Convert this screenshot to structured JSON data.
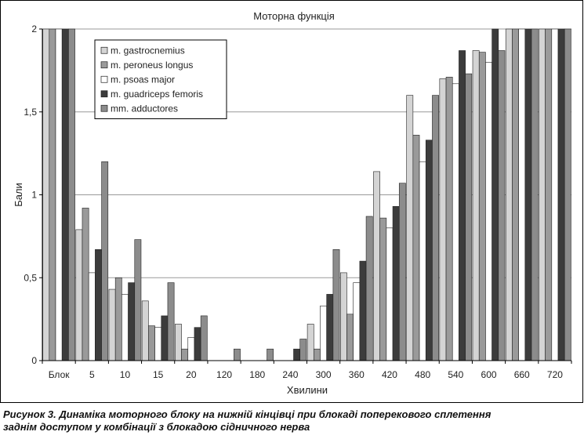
{
  "chart_data": {
    "type": "bar",
    "title": "Моторна функція",
    "xlabel": "Хвилини",
    "ylabel": "Бали",
    "ylim": [
      0,
      2
    ],
    "yticks": [
      "0",
      "0,5",
      "1",
      "1,5",
      "2"
    ],
    "categories": [
      "Блок",
      "5",
      "10",
      "15",
      "20",
      "120",
      "180",
      "240",
      "300",
      "360",
      "420",
      "480",
      "540",
      "600",
      "660",
      "720"
    ],
    "grid": true,
    "legend_position": "top-left",
    "series": [
      {
        "name": "m. gastrocnemius",
        "color": "#d4d4d4",
        "values": [
          2,
          0.79,
          0.43,
          0.36,
          0.22,
          0,
          0,
          0,
          0.22,
          0.53,
          1.14,
          1.6,
          1.7,
          1.87,
          2,
          2
        ]
      },
      {
        "name": "m. peroneus longus",
        "color": "#9a9a9a",
        "values": [
          2,
          0.92,
          0.5,
          0.21,
          0.07,
          0,
          0,
          0,
          0.07,
          0.28,
          0.86,
          1.36,
          1.71,
          1.86,
          2,
          2
        ]
      },
      {
        "name": "m. psoas major",
        "color": "#ffffff",
        "values": [
          2,
          0.53,
          0.4,
          0.2,
          0.14,
          0,
          0,
          0,
          0.33,
          0.47,
          0.8,
          1.2,
          1.67,
          1.8,
          2,
          2
        ]
      },
      {
        "name": "m. guadriceps femoris",
        "color": "#3c3c3c",
        "values": [
          2,
          0.67,
          0.47,
          0.27,
          0.2,
          0,
          0,
          0.07,
          0.4,
          0.6,
          0.93,
          1.33,
          1.87,
          2,
          2,
          2
        ]
      },
      {
        "name": "mm. adductores",
        "color": "#8c8c8c",
        "values": [
          2,
          1.2,
          0.73,
          0.47,
          0.27,
          0.07,
          0.07,
          0.13,
          0.67,
          0.87,
          1.07,
          1.6,
          1.73,
          1.87,
          2,
          2
        ]
      }
    ]
  },
  "caption": {
    "line1": "Рисунок 3. Динаміка моторного блоку на нижній кінцівці при блокаді поперекового сплетення",
    "line2": "заднім доступом у комбінації з блокадою сідничного нерва"
  }
}
